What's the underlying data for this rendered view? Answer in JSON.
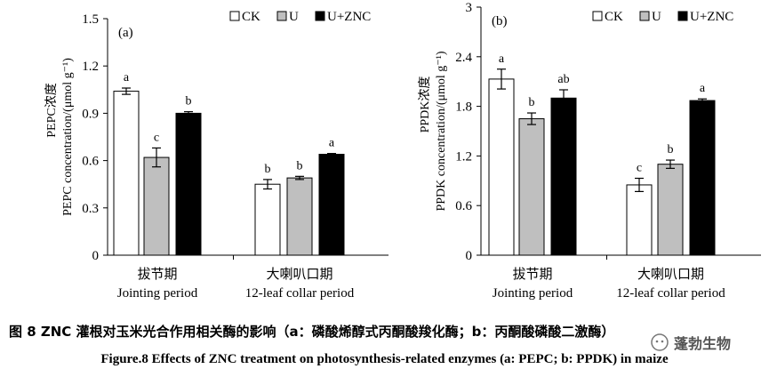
{
  "chart_data": [
    {
      "type": "bar",
      "panel_label": "(a)",
      "ylabel_cn": "PEPC浓度",
      "ylabel_en": "PEPC concentration/(μmol g⁻¹)",
      "ylim": [
        0,
        1.5
      ],
      "yticks": [
        "0",
        "0.3",
        "0.6",
        "0.9",
        "1.2",
        "1.5"
      ],
      "ytick_values": [
        0,
        0.3,
        0.6,
        0.9,
        1.2,
        1.5
      ],
      "categories": [
        {
          "cn": "拔节期",
          "en": "Jointing period"
        },
        {
          "cn": "大喇叭口期",
          "en": "12-leaf collar period"
        }
      ],
      "series": [
        {
          "name": "CK",
          "color": "#ffffff",
          "values": [
            1.04,
            0.45
          ],
          "errors": [
            0.02,
            0.03
          ],
          "letters": [
            "a",
            "b"
          ]
        },
        {
          "name": "U",
          "color": "#bfbfbf",
          "values": [
            0.62,
            0.49
          ],
          "errors": [
            0.06,
            0.01
          ],
          "letters": [
            "c",
            "b"
          ]
        },
        {
          "name": "U+ZNC",
          "color": "#000000",
          "values": [
            0.9,
            0.64
          ],
          "errors": [
            0.01,
            0.005
          ],
          "letters": [
            "b",
            "a"
          ]
        }
      ]
    },
    {
      "type": "bar",
      "panel_label": "(b)",
      "ylabel_cn": "PPDK浓度",
      "ylabel_en": "PPDK concentration/(μmol g⁻¹)",
      "ylim": [
        0,
        3
      ],
      "yticks": [
        "0",
        "0.6",
        "1.2",
        "1.8",
        "2.4",
        "3"
      ],
      "ytick_values": [
        0,
        0.6,
        1.2,
        1.8,
        2.4,
        3
      ],
      "categories": [
        {
          "cn": "拔节期",
          "en": "Jointing period"
        },
        {
          "cn": "大喇叭口期",
          "en": "12-leaf collar period"
        }
      ],
      "series": [
        {
          "name": "CK",
          "color": "#ffffff",
          "values": [
            2.13,
            0.85
          ],
          "errors": [
            0.12,
            0.08
          ],
          "letters": [
            "a",
            "c"
          ]
        },
        {
          "name": "U",
          "color": "#bfbfbf",
          "values": [
            1.65,
            1.1
          ],
          "errors": [
            0.07,
            0.05
          ],
          "letters": [
            "b",
            "b"
          ]
        },
        {
          "name": "U+ZNC",
          "color": "#000000",
          "values": [
            1.9,
            1.87
          ],
          "errors": [
            0.1,
            0.02
          ],
          "letters": [
            "ab",
            "a"
          ]
        }
      ]
    }
  ],
  "caption": {
    "cn": "图 8 ZNC 灌根对玉米光合作用相关酶的影响（a：磷酸烯醇式丙酮酸羧化酶；b：丙酮酸磷酸二激酶）",
    "en": "Figure.8 Effects of ZNC treatment on photosynthesis-related enzymes (a: PEPC; b: PPDK) in maize"
  },
  "watermark": {
    "text": "蓬勃生物"
  }
}
